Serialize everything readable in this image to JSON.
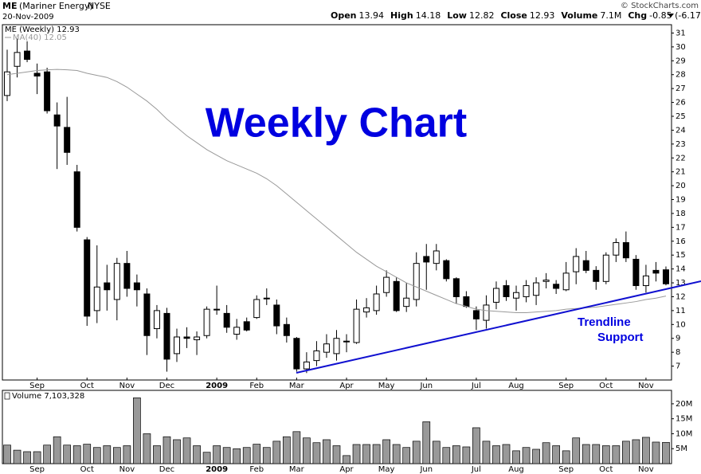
{
  "header": {
    "symbol": "ME",
    "name": "(Mariner Energy)",
    "exchange": "NYSE",
    "date": "20-Nov-2009",
    "source": "© StockCharts.com",
    "quote": [
      {
        "label": "Open",
        "value": "13.94"
      },
      {
        "label": "High",
        "value": "14.18"
      },
      {
        "label": "Low",
        "value": "12.82"
      },
      {
        "label": "Close",
        "value": "12.93"
      },
      {
        "label": "Volume",
        "value": "7.1M"
      },
      {
        "label": "Chg",
        "value": "-0.85 (-6.17%)"
      }
    ]
  },
  "annotations": {
    "title": "Weekly Chart",
    "trend_1": "Trendline",
    "trend_2": "Support"
  },
  "chart_data": [
    {
      "type": "candlestick",
      "legend": "ME (Weekly) 12.93",
      "grid": false,
      "up_color": "#ffffff",
      "down_color": "#000000",
      "categories": [
        null,
        null,
        null,
        "Sep",
        null,
        null,
        null,
        null,
        "Oct",
        null,
        null,
        null,
        "Nov",
        null,
        null,
        null,
        "Dec",
        null,
        null,
        null,
        null,
        "2009",
        null,
        null,
        null,
        "Feb",
        null,
        null,
        null,
        "Mar",
        null,
        null,
        null,
        null,
        "Apr",
        null,
        null,
        null,
        "May",
        null,
        null,
        null,
        "Jun",
        null,
        null,
        null,
        null,
        "Jul",
        null,
        null,
        null,
        "Aug",
        null,
        null,
        null,
        null,
        "Sep",
        null,
        null,
        null,
        "Oct",
        null,
        null,
        null,
        "Nov",
        null,
        null
      ],
      "open": [
        26.5,
        28.6,
        29.7,
        28.1,
        28.2,
        25.1,
        24.2,
        21.0,
        16.1,
        11.0,
        13.0,
        11.8,
        14.4,
        13.0,
        12.2,
        9.7,
        10.8,
        7.9,
        9.1,
        8.9,
        9.2,
        11.1,
        10.8,
        9.3,
        10.2,
        10.5,
        11.9,
        11.4,
        10.0,
        9.0,
        6.8,
        7.4,
        8.0,
        7.9,
        8.8,
        8.7,
        10.9,
        11.0,
        12.3,
        13.1,
        11.3,
        11.8,
        14.9,
        14.4,
        14.6,
        13.3,
        12.0,
        11.0,
        10.3,
        11.6,
        12.8,
        11.9,
        12.0,
        12.1,
        13.1,
        12.9,
        12.5,
        13.8,
        14.6,
        13.9,
        13.1,
        15.0,
        15.9,
        14.7,
        12.8,
        13.9,
        13.94
      ],
      "high": [
        29.8,
        30.6,
        30.4,
        28.8,
        28.5,
        26.0,
        26.4,
        21.5,
        16.3,
        15.7,
        14.3,
        14.8,
        15.3,
        13.6,
        12.6,
        11.4,
        11.2,
        9.7,
        9.8,
        9.5,
        11.3,
        12.8,
        11.4,
        10.4,
        10.5,
        12.1,
        12.6,
        11.8,
        10.5,
        9.1,
        8.0,
        8.8,
        9.3,
        9.6,
        9.3,
        11.8,
        11.9,
        12.8,
        13.9,
        13.4,
        13.0,
        15.2,
        15.8,
        15.8,
        14.7,
        13.4,
        12.4,
        11.3,
        12.1,
        13.1,
        13.2,
        12.8,
        13.2,
        13.4,
        13.7,
        13.2,
        14.5,
        15.5,
        15.3,
        14.2,
        15.2,
        16.2,
        16.7,
        15.0,
        14.3,
        14.5,
        14.18
      ],
      "low": [
        26.1,
        27.8,
        28.9,
        26.6,
        25.2,
        21.2,
        21.5,
        16.7,
        9.9,
        10.1,
        11.0,
        10.3,
        12.0,
        11.3,
        7.8,
        9.0,
        6.6,
        7.3,
        8.3,
        7.8,
        9.0,
        10.7,
        9.4,
        8.9,
        9.5,
        10.4,
        11.4,
        9.3,
        8.7,
        6.6,
        6.5,
        7.0,
        7.6,
        7.4,
        8.0,
        8.6,
        10.5,
        10.7,
        12.0,
        10.9,
        10.9,
        11.3,
        12.5,
        13.9,
        13.1,
        11.5,
        11.2,
        9.6,
        9.7,
        11.1,
        11.7,
        11.0,
        11.6,
        11.4,
        12.6,
        12.2,
        12.4,
        12.9,
        13.7,
        12.5,
        12.9,
        14.5,
        14.5,
        12.5,
        12.3,
        13.1,
        12.82
      ],
      "close": [
        28.2,
        29.6,
        29.1,
        27.9,
        25.4,
        24.3,
        22.4,
        17.0,
        10.6,
        12.7,
        12.5,
        14.4,
        12.6,
        12.5,
        9.2,
        11.0,
        7.5,
        9.1,
        9.0,
        9.1,
        11.1,
        11.1,
        9.8,
        9.8,
        9.6,
        11.8,
        11.9,
        9.9,
        9.2,
        6.8,
        7.3,
        8.1,
        8.6,
        9.0,
        8.8,
        11.1,
        11.2,
        12.2,
        13.4,
        11.0,
        11.9,
        14.4,
        14.5,
        15.3,
        13.3,
        12.0,
        11.3,
        10.4,
        11.4,
        12.6,
        12.0,
        12.3,
        12.8,
        13.0,
        13.2,
        12.6,
        13.7,
        14.9,
        13.9,
        13.1,
        15.0,
        15.9,
        14.8,
        12.8,
        13.5,
        13.7,
        12.93
      ],
      "overlays": [
        {
          "name": "MA(40) 12.05",
          "color": "#999999",
          "values": [
            28.0,
            28.1,
            28.2,
            28.3,
            28.35,
            28.38,
            28.35,
            28.3,
            28.1,
            27.95,
            27.8,
            27.5,
            27.1,
            26.6,
            26.1,
            25.5,
            24.8,
            24.2,
            23.6,
            23.1,
            22.6,
            22.2,
            21.8,
            21.5,
            21.2,
            20.9,
            20.5,
            20.0,
            19.4,
            18.8,
            18.2,
            17.6,
            17.0,
            16.4,
            15.8,
            15.2,
            14.7,
            14.2,
            13.8,
            13.4,
            13.0,
            12.7,
            12.4,
            12.1,
            11.8,
            11.5,
            11.3,
            11.1,
            11.0,
            10.95,
            10.9,
            10.85,
            10.85,
            10.9,
            10.95,
            11.0,
            11.1,
            11.15,
            11.2,
            11.25,
            11.35,
            11.45,
            11.55,
            11.65,
            11.8,
            11.9,
            12.05
          ]
        }
      ],
      "ylim": [
        6,
        31.6
      ],
      "yticks": [
        7,
        8,
        9,
        10,
        11,
        12,
        13,
        14,
        15,
        16,
        17,
        18,
        19,
        20,
        21,
        22,
        23,
        24,
        25,
        26,
        27,
        28,
        29,
        30,
        31
      ]
    },
    {
      "type": "bar",
      "legend": "Volume 7,103,328",
      "color": "#999999",
      "grid": false,
      "categories": [
        null,
        null,
        null,
        "Sep",
        null,
        null,
        null,
        null,
        "Oct",
        null,
        null,
        null,
        "Nov",
        null,
        null,
        null,
        "Dec",
        null,
        null,
        null,
        null,
        "2009",
        null,
        null,
        null,
        "Feb",
        null,
        null,
        null,
        "Mar",
        null,
        null,
        null,
        null,
        "Apr",
        null,
        null,
        null,
        "May",
        null,
        null,
        null,
        "Jun",
        null,
        null,
        null,
        null,
        "Jul",
        null,
        null,
        null,
        "Aug",
        null,
        null,
        null,
        null,
        "Sep",
        null,
        null,
        null,
        "Oct",
        null,
        null,
        null,
        "Nov",
        null,
        null
      ],
      "values": [
        6200000,
        4500000,
        4000000,
        4000000,
        6200000,
        9000000,
        6200000,
        6000000,
        6500000,
        5400000,
        6000000,
        5400000,
        6000000,
        22000000,
        10000000,
        6000000,
        9000000,
        8000000,
        8600000,
        6000000,
        3800000,
        6000000,
        5400000,
        5000000,
        5400000,
        6500000,
        5400000,
        7500000,
        9000000,
        10700000,
        8600000,
        7000000,
        8000000,
        6000000,
        2700000,
        6400000,
        6400000,
        6400000,
        8000000,
        6400000,
        5400000,
        7500000,
        14000000,
        7500000,
        5400000,
        6000000,
        5600000,
        12000000,
        7500000,
        6000000,
        6400000,
        4300000,
        5400000,
        4800000,
        7000000,
        6000000,
        4300000,
        8600000,
        6400000,
        6400000,
        6000000,
        6000000,
        7500000,
        8000000,
        8800000,
        7200000,
        7103328
      ],
      "ylim": [
        0,
        24500000
      ],
      "yticks": [
        {
          "value": 5000000,
          "label": "5M"
        },
        {
          "value": 10000000,
          "label": "10M"
        },
        {
          "value": 15000000,
          "label": "15M"
        },
        {
          "value": 20000000,
          "label": "20M"
        }
      ]
    }
  ]
}
